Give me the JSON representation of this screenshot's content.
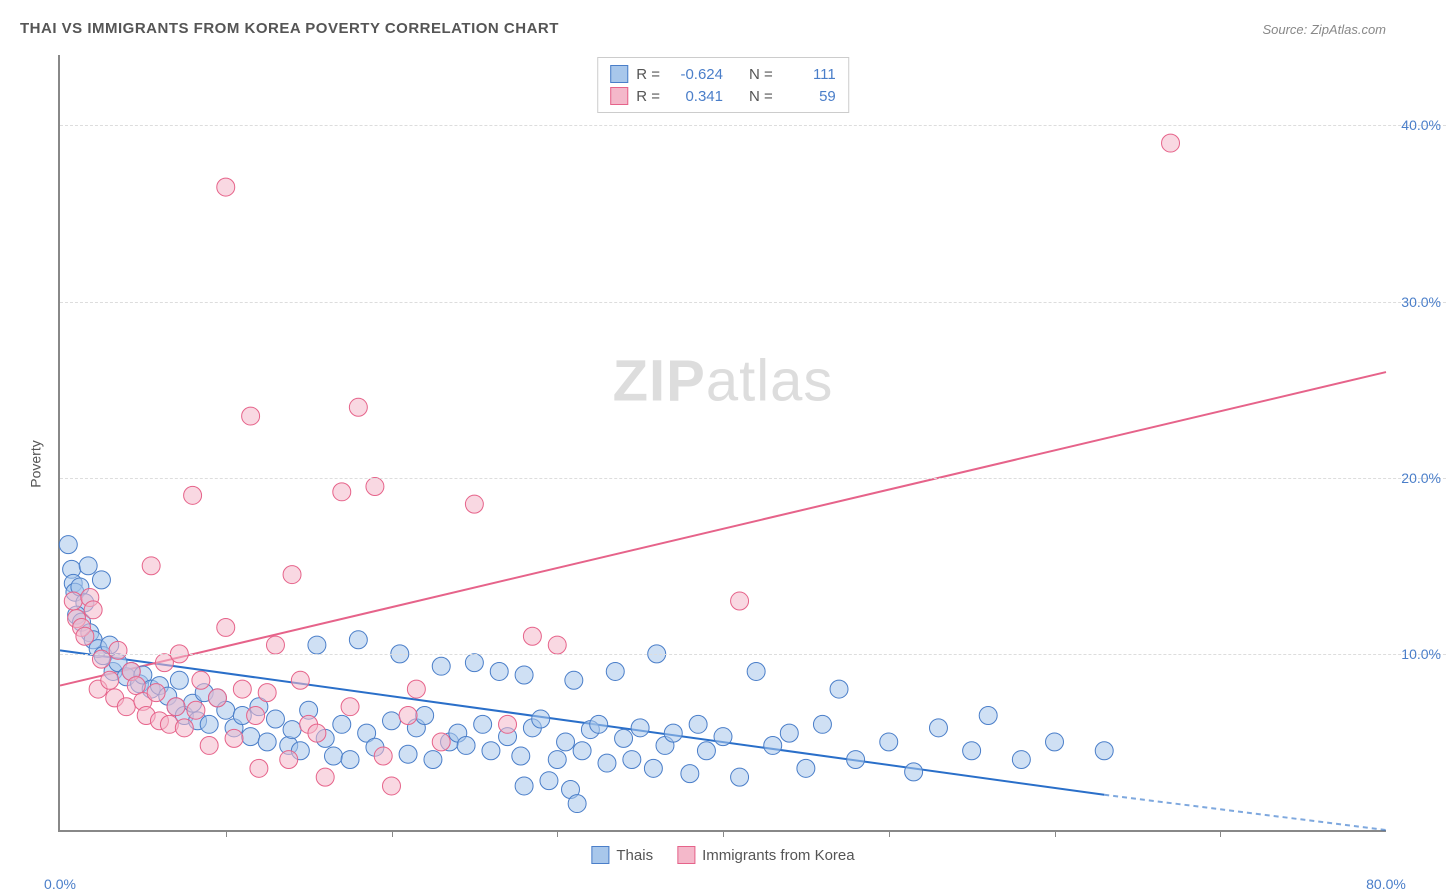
{
  "title": "THAI VS IMMIGRANTS FROM KOREA POVERTY CORRELATION CHART",
  "source": "Source: ZipAtlas.com",
  "ylabel": "Poverty",
  "watermark_bold": "ZIP",
  "watermark_light": "atlas",
  "chart": {
    "type": "scatter",
    "xlim": [
      0,
      80
    ],
    "ylim": [
      0,
      44
    ],
    "x_ticks_dashed": [
      10,
      20,
      30,
      40,
      50,
      60,
      70
    ],
    "x_labels": [
      {
        "x": 0,
        "label": "0.0%"
      },
      {
        "x": 80,
        "label": "80.0%"
      }
    ],
    "y_gridlines": [
      10,
      20,
      30,
      40
    ],
    "y_labels": [
      {
        "y": 10,
        "label": "10.0%"
      },
      {
        "y": 20,
        "label": "20.0%"
      },
      {
        "y": 30,
        "label": "30.0%"
      },
      {
        "y": 40,
        "label": "40.0%"
      }
    ],
    "grid_color": "#dddddd",
    "axis_color": "#888888",
    "label_color": "#4a7ec9",
    "background": "#ffffff",
    "marker_radius": 9,
    "marker_opacity": 0.55,
    "line_width": 2,
    "series": [
      {
        "name": "Thais",
        "fill": "#a8c7eb",
        "stroke": "#4a7ec9",
        "line_color": "#2a6fc9",
        "R": "-0.624",
        "N": "111",
        "trend": {
          "x1": 0,
          "y1": 10.2,
          "x2": 63,
          "y2": 2.0
        },
        "trend_dashed": {
          "x1": 63,
          "y1": 2.0,
          "x2": 80,
          "y2": 0.0
        },
        "points": [
          [
            0.5,
            16.2
          ],
          [
            0.7,
            14.8
          ],
          [
            0.8,
            14.0
          ],
          [
            0.9,
            13.5
          ],
          [
            1.2,
            13.8
          ],
          [
            1.5,
            12.9
          ],
          [
            1.7,
            15.0
          ],
          [
            2.5,
            14.2
          ],
          [
            1.0,
            12.2
          ],
          [
            1.3,
            11.8
          ],
          [
            1.8,
            11.2
          ],
          [
            2.0,
            10.8
          ],
          [
            2.3,
            10.3
          ],
          [
            2.6,
            9.9
          ],
          [
            3.0,
            10.5
          ],
          [
            3.2,
            9.0
          ],
          [
            3.5,
            9.5
          ],
          [
            4.0,
            8.7
          ],
          [
            4.3,
            9.0
          ],
          [
            4.8,
            8.3
          ],
          [
            5.0,
            8.8
          ],
          [
            5.5,
            8.0
          ],
          [
            6.0,
            8.2
          ],
          [
            6.5,
            7.6
          ],
          [
            7.0,
            7.0
          ],
          [
            7.2,
            8.5
          ],
          [
            7.5,
            6.5
          ],
          [
            8.0,
            7.2
          ],
          [
            8.3,
            6.2
          ],
          [
            8.7,
            7.8
          ],
          [
            9.0,
            6.0
          ],
          [
            9.5,
            7.5
          ],
          [
            10.0,
            6.8
          ],
          [
            10.5,
            5.8
          ],
          [
            11.0,
            6.5
          ],
          [
            11.5,
            5.3
          ],
          [
            12.0,
            7.0
          ],
          [
            12.5,
            5.0
          ],
          [
            13.0,
            6.3
          ],
          [
            13.8,
            4.8
          ],
          [
            14.0,
            5.7
          ],
          [
            14.5,
            4.5
          ],
          [
            15.0,
            6.8
          ],
          [
            15.5,
            10.5
          ],
          [
            16.0,
            5.2
          ],
          [
            16.5,
            4.2
          ],
          [
            17.0,
            6.0
          ],
          [
            17.5,
            4.0
          ],
          [
            18.0,
            10.8
          ],
          [
            18.5,
            5.5
          ],
          [
            19.0,
            4.7
          ],
          [
            20.0,
            6.2
          ],
          [
            20.5,
            10.0
          ],
          [
            21.0,
            4.3
          ],
          [
            21.5,
            5.8
          ],
          [
            22.0,
            6.5
          ],
          [
            22.5,
            4.0
          ],
          [
            23.0,
            9.3
          ],
          [
            23.5,
            5.0
          ],
          [
            24.0,
            5.5
          ],
          [
            24.5,
            4.8
          ],
          [
            25.0,
            9.5
          ],
          [
            25.5,
            6.0
          ],
          [
            26.0,
            4.5
          ],
          [
            26.5,
            9.0
          ],
          [
            27.0,
            5.3
          ],
          [
            27.8,
            4.2
          ],
          [
            28.0,
            8.8
          ],
          [
            28.5,
            5.8
          ],
          [
            29.0,
            6.3
          ],
          [
            30.0,
            4.0
          ],
          [
            30.5,
            5.0
          ],
          [
            31.0,
            8.5
          ],
          [
            31.5,
            4.5
          ],
          [
            32.0,
            5.7
          ],
          [
            32.5,
            6.0
          ],
          [
            33.0,
            3.8
          ],
          [
            33.5,
            9.0
          ],
          [
            34.0,
            5.2
          ],
          [
            34.5,
            4.0
          ],
          [
            35.0,
            5.8
          ],
          [
            35.8,
            3.5
          ],
          [
            36.0,
            10.0
          ],
          [
            36.5,
            4.8
          ],
          [
            28.0,
            2.5
          ],
          [
            29.5,
            2.8
          ],
          [
            30.8,
            2.3
          ],
          [
            31.2,
            1.5
          ],
          [
            37.0,
            5.5
          ],
          [
            38.0,
            3.2
          ],
          [
            38.5,
            6.0
          ],
          [
            39.0,
            4.5
          ],
          [
            40.0,
            5.3
          ],
          [
            41.0,
            3.0
          ],
          [
            42.0,
            9.0
          ],
          [
            43.0,
            4.8
          ],
          [
            44.0,
            5.5
          ],
          [
            45.0,
            3.5
          ],
          [
            46.0,
            6.0
          ],
          [
            47.0,
            8.0
          ],
          [
            48.0,
            4.0
          ],
          [
            50.0,
            5.0
          ],
          [
            51.5,
            3.3
          ],
          [
            53.0,
            5.8
          ],
          [
            55.0,
            4.5
          ],
          [
            56.0,
            6.5
          ],
          [
            58.0,
            4.0
          ],
          [
            60.0,
            5.0
          ],
          [
            63.0,
            4.5
          ]
        ]
      },
      {
        "name": "Immigrants from Korea",
        "fill": "#f4b8ca",
        "stroke": "#e6638a",
        "line_color": "#e6638a",
        "R": "0.341",
        "N": "59",
        "trend": {
          "x1": 0,
          "y1": 8.2,
          "x2": 80,
          "y2": 26.0
        },
        "points": [
          [
            0.8,
            13.0
          ],
          [
            1.0,
            12.0
          ],
          [
            1.3,
            11.5
          ],
          [
            1.5,
            11.0
          ],
          [
            1.8,
            13.2
          ],
          [
            2.0,
            12.5
          ],
          [
            2.3,
            8.0
          ],
          [
            2.5,
            9.7
          ],
          [
            3.0,
            8.5
          ],
          [
            3.3,
            7.5
          ],
          [
            3.5,
            10.2
          ],
          [
            4.0,
            7.0
          ],
          [
            4.3,
            9.0
          ],
          [
            4.6,
            8.2
          ],
          [
            5.0,
            7.3
          ],
          [
            5.2,
            6.5
          ],
          [
            5.5,
            15.0
          ],
          [
            5.8,
            7.8
          ],
          [
            6.0,
            6.2
          ],
          [
            6.3,
            9.5
          ],
          [
            6.6,
            6.0
          ],
          [
            7.0,
            7.0
          ],
          [
            7.2,
            10.0
          ],
          [
            7.5,
            5.8
          ],
          [
            8.0,
            19.0
          ],
          [
            8.2,
            6.8
          ],
          [
            8.5,
            8.5
          ],
          [
            9.0,
            4.8
          ],
          [
            9.5,
            7.5
          ],
          [
            10.0,
            11.5
          ],
          [
            10.5,
            5.2
          ],
          [
            11.0,
            8.0
          ],
          [
            11.5,
            23.5
          ],
          [
            11.8,
            6.5
          ],
          [
            12.0,
            3.5
          ],
          [
            12.5,
            7.8
          ],
          [
            13.0,
            10.5
          ],
          [
            13.8,
            4.0
          ],
          [
            14.0,
            14.5
          ],
          [
            14.5,
            8.5
          ],
          [
            15.0,
            6.0
          ],
          [
            15.5,
            5.5
          ],
          [
            16.0,
            3.0
          ],
          [
            17.0,
            19.2
          ],
          [
            17.5,
            7.0
          ],
          [
            18.0,
            24.0
          ],
          [
            19.0,
            19.5
          ],
          [
            19.5,
            4.2
          ],
          [
            20.0,
            2.5
          ],
          [
            21.0,
            6.5
          ],
          [
            21.5,
            8.0
          ],
          [
            23.0,
            5.0
          ],
          [
            25.0,
            18.5
          ],
          [
            27.0,
            6.0
          ],
          [
            28.5,
            11.0
          ],
          [
            30.0,
            10.5
          ],
          [
            41.0,
            13.0
          ],
          [
            67.0,
            39.0
          ],
          [
            10.0,
            36.5
          ]
        ]
      }
    ]
  },
  "stats_legend": {
    "rows": [
      {
        "swatch_fill": "#a8c7eb",
        "swatch_stroke": "#4a7ec9",
        "R_label": "R =",
        "R": "-0.624",
        "N_label": "N =",
        "N": "111"
      },
      {
        "swatch_fill": "#f4b8ca",
        "swatch_stroke": "#e6638a",
        "R_label": "R =",
        "R": "0.341",
        "N_label": "N =",
        "N": "59"
      }
    ]
  },
  "bottom_legend": [
    {
      "swatch_fill": "#a8c7eb",
      "swatch_stroke": "#4a7ec9",
      "label": "Thais"
    },
    {
      "swatch_fill": "#f4b8ca",
      "swatch_stroke": "#e6638a",
      "label": "Immigrants from Korea"
    }
  ]
}
